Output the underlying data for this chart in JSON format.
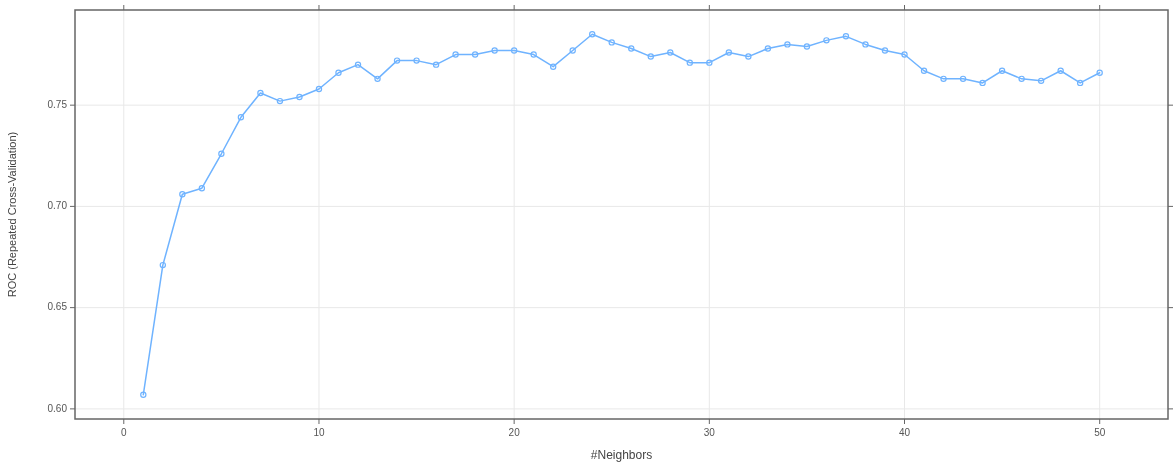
{
  "chart_data": {
    "type": "line",
    "xlabel": "#Neighbors",
    "ylabel": "ROC (Repeated Cross-Validation)",
    "x": [
      1,
      2,
      3,
      4,
      5,
      6,
      7,
      8,
      9,
      10,
      11,
      12,
      13,
      14,
      15,
      16,
      17,
      18,
      19,
      20,
      21,
      22,
      23,
      24,
      25,
      26,
      27,
      28,
      29,
      30,
      31,
      32,
      33,
      34,
      35,
      36,
      37,
      38,
      39,
      40,
      41,
      42,
      43,
      44,
      45,
      46,
      47,
      48,
      49,
      50
    ],
    "series": [
      {
        "color": "#6fb3ff",
        "values": [
          0.607,
          0.671,
          0.706,
          0.709,
          0.726,
          0.744,
          0.756,
          0.752,
          0.754,
          0.758,
          0.766,
          0.77,
          0.763,
          0.772,
          0.772,
          0.77,
          0.775,
          0.775,
          0.777,
          0.777,
          0.775,
          0.769,
          0.777,
          0.785,
          0.781,
          0.778,
          0.774,
          0.776,
          0.771,
          0.771,
          0.776,
          0.774,
          0.778,
          0.78,
          0.779,
          0.782,
          0.784,
          0.78,
          0.777,
          0.775,
          0.767,
          0.763,
          0.763,
          0.761,
          0.767,
          0.763,
          0.762,
          0.767,
          0.761,
          0.766
        ]
      }
    ],
    "xlim": [
      -2.5,
      53.5
    ],
    "ylim": [
      0.595,
      0.797
    ],
    "xticks": [
      0,
      10,
      20,
      30,
      40,
      50
    ],
    "yticks": [
      {
        "value": 0.6,
        "label": "0.60"
      },
      {
        "value": 0.65,
        "label": "0.65"
      },
      {
        "value": 0.7,
        "label": "0.70"
      },
      {
        "value": 0.75,
        "label": "0.75"
      }
    ],
    "grid": true,
    "marker": "circle",
    "line_style": "solid"
  }
}
